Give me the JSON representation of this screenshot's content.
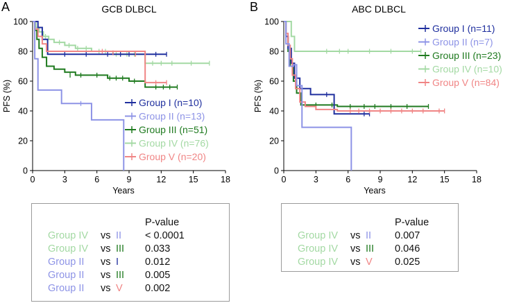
{
  "colors": {
    "Group I": "#1f2f9e",
    "Group II": "#8d93e6",
    "Group III": "#1f7a1f",
    "Group IV": "#a3d9a3",
    "Group V": "#f08585"
  },
  "panels": {
    "A": {
      "letter": "A",
      "title": "GCB DLBCL"
    },
    "B": {
      "letter": "B",
      "title": "ABC DLBCL"
    }
  },
  "chart_data": [
    {
      "type": "line",
      "panel": "A",
      "title": "GCB DLBCL",
      "xlabel": "Years",
      "ylabel": "PFS (%)",
      "xlim": [
        0,
        18
      ],
      "ylim": [
        0,
        100
      ],
      "xticks": [
        0,
        3,
        6,
        9,
        12,
        15,
        18
      ],
      "yticks": [
        0,
        20,
        40,
        60,
        80,
        100
      ],
      "legend_position": "right",
      "series": [
        {
          "name": "Group IV",
          "label": "Group IV (n=76)",
          "x": [
            0,
            0.3,
            0.6,
            1.0,
            1.5,
            2.0,
            3.0,
            4.0,
            5.5,
            7.5,
            10.5,
            16.5
          ],
          "y": [
            100,
            96,
            93,
            90,
            88,
            86,
            84,
            82,
            80,
            78,
            72,
            72
          ],
          "censors": [
            [
              1.2,
              90
            ],
            [
              2.5,
              86
            ],
            [
              3.4,
              84
            ],
            [
              4.2,
              82
            ],
            [
              5.0,
              82
            ],
            [
              6.2,
              80
            ],
            [
              6.8,
              80
            ],
            [
              7.8,
              78
            ],
            [
              8.8,
              78
            ],
            [
              9.5,
              78
            ],
            [
              11.2,
              72
            ],
            [
              12.0,
              72
            ],
            [
              13.0,
              72
            ],
            [
              14.8,
              72
            ],
            [
              16.5,
              72
            ]
          ]
        },
        {
          "name": "Group III",
          "label": "Group III (n=51)",
          "x": [
            0,
            0.2,
            0.4,
            0.6,
            0.9,
            1.3,
            2.0,
            3.0,
            4.0,
            5.0,
            7.0,
            9.0,
            10.5,
            13.5
          ],
          "y": [
            100,
            94,
            88,
            82,
            76,
            70,
            68,
            66,
            64,
            64,
            62,
            60,
            56,
            56
          ],
          "censors": [
            [
              3.5,
              64
            ],
            [
              4.5,
              64
            ],
            [
              6.0,
              64
            ],
            [
              7.2,
              62
            ],
            [
              7.8,
              62
            ],
            [
              8.4,
              62
            ],
            [
              9.5,
              60
            ],
            [
              11.5,
              56
            ],
            [
              12.2,
              56
            ],
            [
              12.8,
              56
            ],
            [
              13.5,
              56
            ]
          ]
        },
        {
          "name": "Group I",
          "label": "Group I (n=10)",
          "x": [
            0,
            0.5,
            0.9,
            1.4,
            12.5
          ],
          "y": [
            100,
            96,
            88,
            78,
            78
          ],
          "censors": [
            [
              3.0,
              78
            ],
            [
              5.0,
              78
            ],
            [
              7.0,
              78
            ],
            [
              8.2,
              78
            ],
            [
              9.0,
              78
            ],
            [
              11.5,
              78
            ],
            [
              12.5,
              78
            ]
          ]
        },
        {
          "name": "Group V",
          "label": "Group V (n=20)",
          "x": [
            0,
            0.2,
            0.5,
            0.9,
            1.3,
            10.5,
            10.5,
            12.5
          ],
          "y": [
            100,
            95,
            90,
            85,
            80,
            78,
            59,
            59
          ],
          "censors": [
            [
              6.5,
              80
            ],
            [
              7.5,
              79
            ],
            [
              9.6,
              78
            ],
            [
              11.5,
              59
            ],
            [
              12.5,
              59
            ]
          ]
        },
        {
          "name": "Group II",
          "label": "Group II (n=13)",
          "x": [
            0,
            0.2,
            0.5,
            2.7,
            5.5,
            8.5,
            8.5
          ],
          "y": [
            100,
            75,
            54,
            45,
            34,
            34,
            0
          ],
          "censors": [
            [
              4.5,
              45
            ]
          ]
        }
      ]
    },
    {
      "type": "line",
      "panel": "B",
      "title": "ABC DLBCL",
      "xlabel": "Years",
      "ylabel": "PFS (%)",
      "xlim": [
        0,
        18
      ],
      "ylim": [
        0,
        100
      ],
      "xticks": [
        0,
        3,
        6,
        9,
        12,
        15,
        18
      ],
      "yticks": [
        0,
        20,
        40,
        60,
        80,
        100
      ],
      "legend_position": "top-right",
      "series": [
        {
          "name": "Group IV",
          "label": "Group IV (n=10)",
          "x": [
            0,
            0.7,
            1.0,
            12.8
          ],
          "y": [
            100,
            90,
            80,
            80
          ],
          "censors": [
            [
              4.0,
              80
            ],
            [
              5.2,
              80
            ],
            [
              6.0,
              80
            ],
            [
              8.0,
              80
            ],
            [
              10.0,
              80
            ],
            [
              12.0,
              80
            ],
            [
              12.8,
              80
            ]
          ]
        },
        {
          "name": "Group III",
          "label": "Group III (n=23)",
          "x": [
            0,
            0.2,
            0.4,
            0.6,
            0.9,
            1.2,
            1.6,
            5.0,
            13.5
          ],
          "y": [
            100,
            90,
            80,
            70,
            60,
            52,
            44,
            43,
            43
          ],
          "censors": [
            [
              3.0,
              44
            ],
            [
              4.5,
              44
            ],
            [
              6.2,
              43
            ],
            [
              7.5,
              43
            ],
            [
              8.5,
              43
            ],
            [
              10.0,
              43
            ],
            [
              11.5,
              43
            ],
            [
              13.5,
              43
            ]
          ]
        },
        {
          "name": "Group I",
          "label": "Group I (n=11)",
          "x": [
            0,
            0.2,
            0.4,
            0.7,
            1.0,
            1.5,
            2.5,
            4.7,
            4.7,
            8.0
          ],
          "y": [
            100,
            90,
            82,
            72,
            62,
            55,
            51,
            51,
            38,
            38
          ],
          "censors": [
            [
              4.0,
              51
            ],
            [
              7.5,
              38
            ],
            [
              8.0,
              38
            ]
          ]
        },
        {
          "name": "Group V",
          "label": "Group V (n=84)",
          "x": [
            0,
            0.2,
            0.4,
            0.6,
            0.8,
            1.1,
            1.5,
            2.0,
            3.0,
            5.0,
            15.0
          ],
          "y": [
            100,
            92,
            84,
            75,
            64,
            55,
            46,
            43,
            41,
            40,
            40
          ],
          "censors": [
            [
              6.2,
              40
            ],
            [
              7.0,
              40
            ],
            [
              8.0,
              40
            ],
            [
              9.0,
              40
            ],
            [
              10.0,
              40
            ],
            [
              11.0,
              40
            ],
            [
              12.0,
              40
            ],
            [
              13.0,
              40
            ],
            [
              14.5,
              40
            ],
            [
              15.0,
              40
            ]
          ]
        },
        {
          "name": "Group II",
          "label": "Group II (n=7)",
          "x": [
            0,
            0.2,
            0.5,
            0.9,
            1.2,
            1.7,
            6.3,
            6.3
          ],
          "y": [
            100,
            85,
            70,
            71,
            57,
            29,
            29,
            0
          ],
          "censors": []
        }
      ]
    }
  ],
  "pvalues": {
    "A": {
      "header": "P-value",
      "rows": [
        {
          "group": "Group IV",
          "group_key": "Group IV",
          "vs": "vs",
          "other": "II",
          "other_key": "Group II",
          "p": "< 0.0001"
        },
        {
          "group": "Group IV",
          "group_key": "Group IV",
          "vs": "vs",
          "other": "III",
          "other_key": "Group III",
          "p": "0.033"
        },
        {
          "group": "Group II",
          "group_key": "Group II",
          "vs": "vs",
          "other": "I",
          "other_key": "Group I",
          "p": "0.012"
        },
        {
          "group": "Group II",
          "group_key": "Group II",
          "vs": "vs",
          "other": "III",
          "other_key": "Group III",
          "p": "0.005"
        },
        {
          "group": "Group II",
          "group_key": "Group II",
          "vs": "vs",
          "other": "V",
          "other_key": "Group V",
          "p": "0.002"
        }
      ]
    },
    "B": {
      "header": "P-value",
      "rows": [
        {
          "group": "Group IV",
          "group_key": "Group IV",
          "vs": "vs",
          "other": "II",
          "other_key": "Group II",
          "p": "0.007"
        },
        {
          "group": "Group IV",
          "group_key": "Group IV",
          "vs": "vs",
          "other": "III",
          "other_key": "Group III",
          "p": "0.046"
        },
        {
          "group": "Group IV",
          "group_key": "Group IV",
          "vs": "vs",
          "other": "V",
          "other_key": "Group V",
          "p": "0.025"
        }
      ]
    }
  }
}
